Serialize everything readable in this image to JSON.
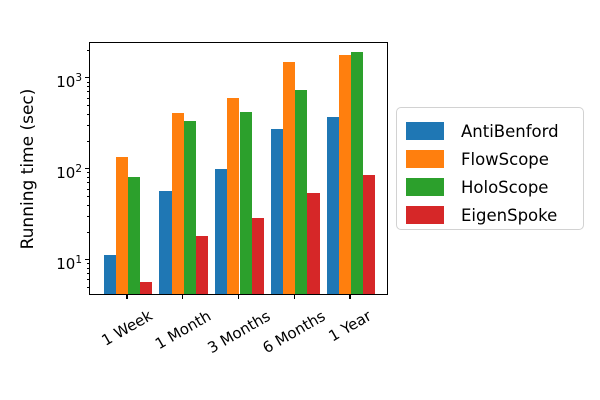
{
  "figure": {
    "background": "#ffffff"
  },
  "chart_data": {
    "type": "bar",
    "title": "",
    "xlabel": "",
    "ylabel": "Running time (sec)",
    "y_scale": "log",
    "ylim": [
      4.1,
      2480
    ],
    "grid": false,
    "legend_position": "center-right-outside",
    "xtick_rotation_deg": 30,
    "categories": [
      "1 Week",
      "1 Month",
      "3 Months",
      "6 Months",
      "1 Year"
    ],
    "series": [
      {
        "name": "AntiBenford",
        "color": "#1f77b4",
        "values": [
          11,
          55,
          97,
          270,
          365
        ]
      },
      {
        "name": "FlowScope",
        "color": "#ff7f0e",
        "values": [
          130,
          400,
          590,
          1450,
          1730
        ]
      },
      {
        "name": "HoloScope",
        "color": "#2ca02c",
        "values": [
          80,
          330,
          415,
          720,
          1880
        ]
      },
      {
        "name": "EigenSpoke",
        "color": "#d62728",
        "values": [
          5.5,
          18,
          28,
          53,
          83
        ]
      }
    ],
    "yticks": [
      {
        "value": 10,
        "base": "10",
        "exp": "1"
      },
      {
        "value": 100,
        "base": "10",
        "exp": "2"
      },
      {
        "value": 1000,
        "base": "10",
        "exp": "3"
      }
    ]
  }
}
